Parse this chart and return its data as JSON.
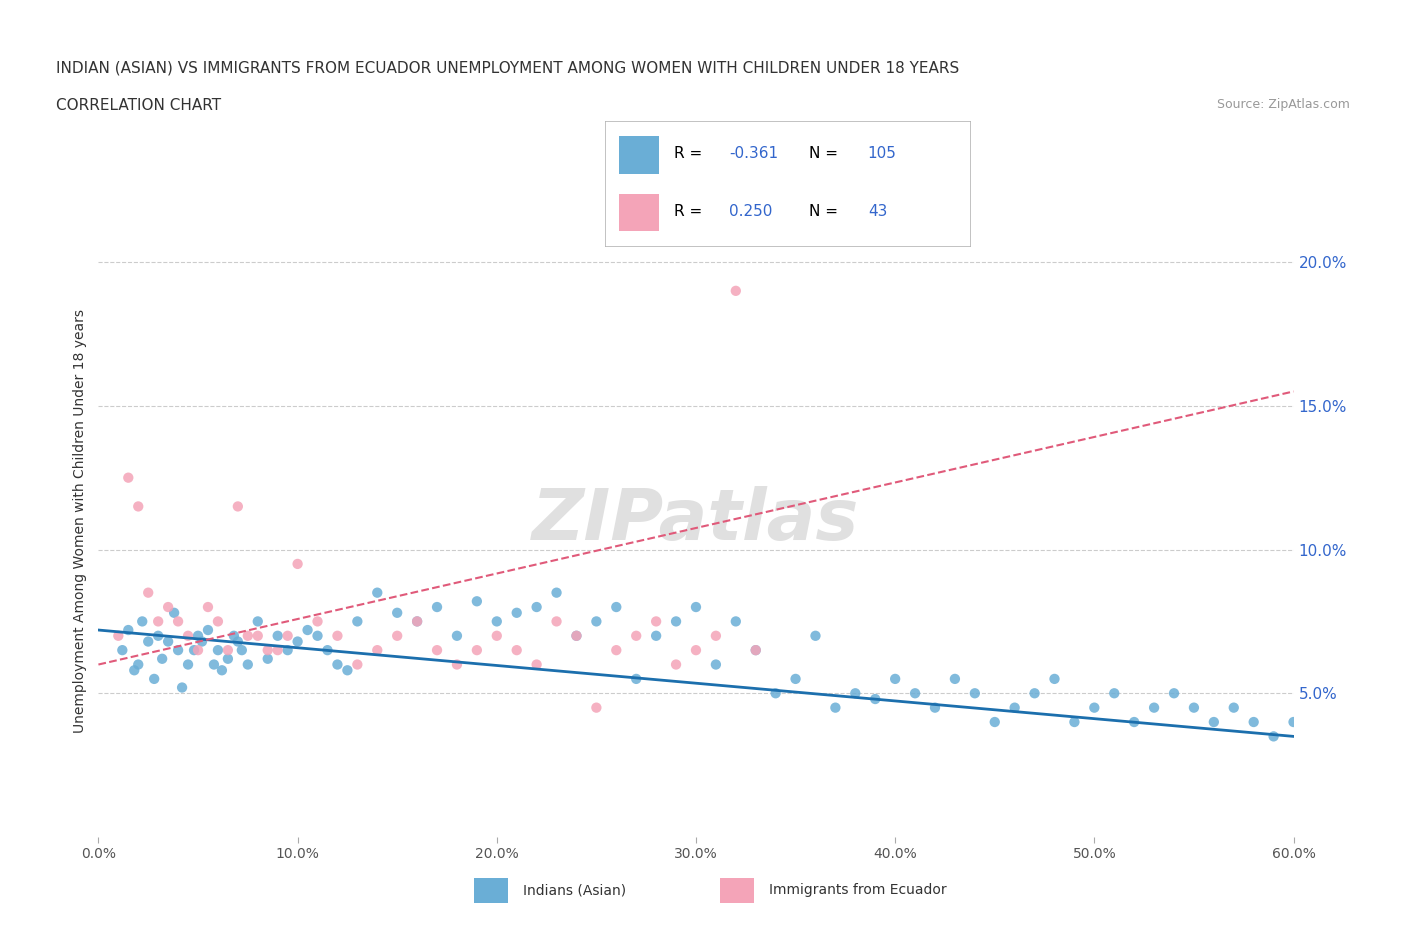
{
  "title_line1": "INDIAN (ASIAN) VS IMMIGRANTS FROM ECUADOR UNEMPLOYMENT AMONG WOMEN WITH CHILDREN UNDER 18 YEARS",
  "title_line2": "CORRELATION CHART",
  "source_text": "Source: ZipAtlas.com",
  "ylabel": "Unemployment Among Women with Children Under 18 years",
  "x_tick_labels": [
    "0.0%",
    "10.0%",
    "20.0%",
    "30.0%",
    "40.0%",
    "50.0%",
    "60.0%"
  ],
  "x_tick_vals": [
    0,
    10,
    20,
    30,
    40,
    50,
    60
  ],
  "y_tick_labels": [
    "5.0%",
    "10.0%",
    "15.0%",
    "20.0%"
  ],
  "y_tick_vals": [
    5,
    10,
    15,
    20
  ],
  "xlim": [
    0,
    60
  ],
  "ylim": [
    0,
    22
  ],
  "legend_labels": [
    "Indians (Asian)",
    "Immigrants from Ecuador"
  ],
  "legend_R": [
    "-0.361",
    "0.250"
  ],
  "legend_N": [
    "105",
    "43"
  ],
  "color_blue": "#6aaed6",
  "color_pink": "#f4a4b8",
  "line_blue": "#1c6fad",
  "line_pink": "#e05a7a",
  "watermark": "ZIPatlas",
  "grid_color": "#cccccc",
  "background_color": "#ffffff",
  "blue_scatter_x": [
    1.2,
    1.5,
    1.8,
    2.0,
    2.2,
    2.5,
    2.8,
    3.0,
    3.2,
    3.5,
    3.8,
    4.0,
    4.2,
    4.5,
    4.8,
    5.0,
    5.2,
    5.5,
    5.8,
    6.0,
    6.2,
    6.5,
    6.8,
    7.0,
    7.2,
    7.5,
    8.0,
    8.5,
    9.0,
    9.5,
    10.0,
    10.5,
    11.0,
    11.5,
    12.0,
    12.5,
    13.0,
    14.0,
    15.0,
    16.0,
    17.0,
    18.0,
    19.0,
    20.0,
    21.0,
    22.0,
    23.0,
    24.0,
    25.0,
    26.0,
    27.0,
    28.0,
    29.0,
    30.0,
    31.0,
    32.0,
    33.0,
    34.0,
    35.0,
    36.0,
    37.0,
    38.0,
    39.0,
    40.0,
    41.0,
    42.0,
    43.0,
    44.0,
    45.0,
    46.0,
    47.0,
    48.0,
    49.0,
    50.0,
    51.0,
    52.0,
    53.0,
    54.0,
    55.0,
    56.0,
    57.0,
    58.0,
    59.0,
    60.0
  ],
  "blue_scatter_y": [
    6.5,
    7.2,
    5.8,
    6.0,
    7.5,
    6.8,
    5.5,
    7.0,
    6.2,
    6.8,
    7.8,
    6.5,
    5.2,
    6.0,
    6.5,
    7.0,
    6.8,
    7.2,
    6.0,
    6.5,
    5.8,
    6.2,
    7.0,
    6.8,
    6.5,
    6.0,
    7.5,
    6.2,
    7.0,
    6.5,
    6.8,
    7.2,
    7.0,
    6.5,
    6.0,
    5.8,
    7.5,
    8.5,
    7.8,
    7.5,
    8.0,
    7.0,
    8.2,
    7.5,
    7.8,
    8.0,
    8.5,
    7.0,
    7.5,
    8.0,
    5.5,
    7.0,
    7.5,
    8.0,
    6.0,
    7.5,
    6.5,
    5.0,
    5.5,
    7.0,
    4.5,
    5.0,
    4.8,
    5.5,
    5.0,
    4.5,
    5.5,
    5.0,
    4.0,
    4.5,
    5.0,
    5.5,
    4.0,
    4.5,
    5.0,
    4.0,
    4.5,
    5.0,
    4.5,
    4.0,
    4.5,
    4.0,
    3.5,
    4.0
  ],
  "pink_scatter_x": [
    1.0,
    1.5,
    2.0,
    2.5,
    3.0,
    3.5,
    4.0,
    4.5,
    5.0,
    5.5,
    6.0,
    6.5,
    7.0,
    7.5,
    8.0,
    8.5,
    9.0,
    9.5,
    10.0,
    11.0,
    12.0,
    13.0,
    14.0,
    15.0,
    16.0,
    17.0,
    18.0,
    19.0,
    20.0,
    21.0,
    22.0,
    23.0,
    24.0,
    25.0,
    26.0,
    27.0,
    28.0,
    29.0,
    30.0,
    31.0,
    32.0,
    33.0
  ],
  "pink_scatter_y": [
    7.0,
    12.5,
    11.5,
    8.5,
    7.5,
    8.0,
    7.5,
    7.0,
    6.5,
    8.0,
    7.5,
    6.5,
    11.5,
    7.0,
    7.0,
    6.5,
    6.5,
    7.0,
    9.5,
    7.5,
    7.0,
    6.0,
    6.5,
    7.0,
    7.5,
    6.5,
    6.0,
    6.5,
    7.0,
    6.5,
    6.0,
    7.5,
    7.0,
    4.5,
    6.5,
    7.0,
    7.5,
    6.0,
    6.5,
    7.0,
    19.0,
    6.5
  ],
  "blue_line_x": [
    0,
    60
  ],
  "blue_line_y_start": 7.2,
  "blue_line_y_end": 3.5,
  "pink_line_x": [
    0,
    60
  ],
  "pink_line_y_start": 6.0,
  "pink_line_y_end": 15.5
}
